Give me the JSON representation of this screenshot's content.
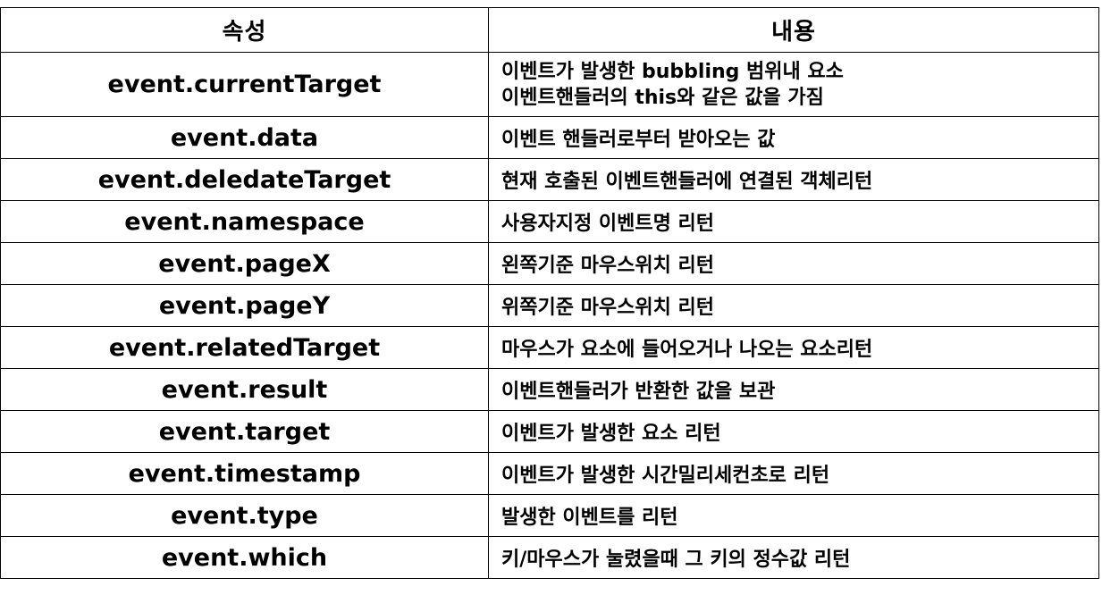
{
  "table": {
    "headers": [
      "속성",
      "내용"
    ],
    "rows": [
      {
        "property": "event.currentTarget",
        "description": [
          "이벤트가 발생한 bubbling 범위내 요소",
          "이벤트핸들러의 this와 같은 값을 가짐"
        ]
      },
      {
        "property": "event.data",
        "description": [
          "이벤트 핸들러로부터 받아오는 값"
        ]
      },
      {
        "property": "event.deledateTarget",
        "description": [
          "현재 호출된 이벤트핸들러에 연결된 객체리턴"
        ]
      },
      {
        "property": "event.namespace",
        "description": [
          "사용자지정 이벤트명 리턴"
        ]
      },
      {
        "property": "event.pageX",
        "description": [
          "왼쪽기준 마우스위치 리턴"
        ]
      },
      {
        "property": "event.pageY",
        "description": [
          "위쪽기준 마우스위치 리턴"
        ]
      },
      {
        "property": "event.relatedTarget",
        "description": [
          "마우스가 요소에 들어오거나 나오는 요소리턴"
        ]
      },
      {
        "property": "event.result",
        "description": [
          "이벤트핸들러가 반환한 값을 보관"
        ]
      },
      {
        "property": "event.target",
        "description": [
          "이벤트가 발생한 요소 리턴"
        ]
      },
      {
        "property": "event.timestamp",
        "description": [
          "이벤트가 발생한 시간밀리세컨초로 리턴"
        ]
      },
      {
        "property": "event.type",
        "description": [
          "발생한 이벤트를 리턴"
        ]
      },
      {
        "property": "event.which",
        "description": [
          "키/마우스가 눌렸을때 그 키의 정수값 리턴"
        ]
      }
    ]
  }
}
